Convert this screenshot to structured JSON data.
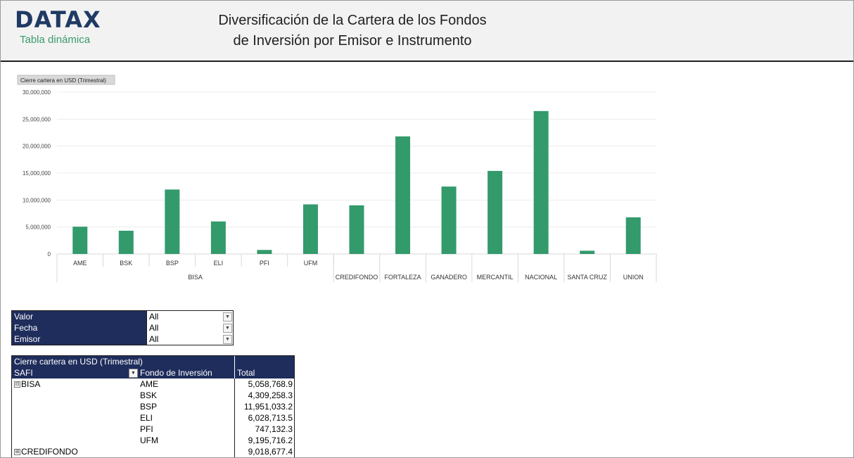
{
  "header": {
    "logo": "DATAX",
    "subtitle": "Tabla dinámica",
    "title_line1": "Diversificación de la Cartera de los Fondos",
    "title_line2": "de Inversión por Emisor e Instrumento"
  },
  "chart_data": {
    "type": "bar",
    "field_button": "Cierre cartera en USD (Trimestral)",
    "ylim": [
      0,
      30000000
    ],
    "yticks": [
      0,
      5000000,
      10000000,
      15000000,
      20000000,
      25000000,
      30000000
    ],
    "ytick_labels": [
      "0",
      "5,000,000",
      "10,000,000",
      "15,000,000",
      "20,000,000",
      "25,000,000",
      "30,000,000"
    ],
    "bar_color": "#339a6c",
    "groups": [
      {
        "label": "BISA",
        "items": [
          {
            "label": "AME",
            "value": 5058768.9
          },
          {
            "label": "BSK",
            "value": 4309258.3
          },
          {
            "label": "BSP",
            "value": 11951033.2
          },
          {
            "label": "ELI",
            "value": 6028713.5
          },
          {
            "label": "PFI",
            "value": 747132.3
          },
          {
            "label": "UFM",
            "value": 9195716.2
          }
        ]
      },
      {
        "label": "CREDIFONDO",
        "items": [
          {
            "label": "",
            "value": 9018677.4
          }
        ]
      },
      {
        "label": "FORTALEZA",
        "items": [
          {
            "label": "",
            "value": 21800000
          }
        ]
      },
      {
        "label": "GANADERO",
        "items": [
          {
            "label": "",
            "value": 12500000
          }
        ]
      },
      {
        "label": "MERCANTIL",
        "items": [
          {
            "label": "",
            "value": 15400000
          }
        ]
      },
      {
        "label": "NACIONAL",
        "items": [
          {
            "label": "",
            "value": 26500000
          }
        ]
      },
      {
        "label": "SANTA CRUZ",
        "items": [
          {
            "label": "",
            "value": 600000
          }
        ]
      },
      {
        "label": "UNION",
        "items": [
          {
            "label": "",
            "value": 6800000
          }
        ]
      }
    ]
  },
  "filters": [
    {
      "label": "Valor",
      "value": "All"
    },
    {
      "label": "Fecha",
      "value": "All"
    },
    {
      "label": "Emisor",
      "value": "All"
    }
  ],
  "pivot": {
    "measure": "Cierre cartera en USD (Trimestral)",
    "col_safi": "SAFI",
    "col_fondo": "Fondo de Inversión",
    "col_total": "Total",
    "rows": [
      {
        "safi": "BISA",
        "expand": "⊟",
        "fondo": "AME",
        "total": "5,058,768.9"
      },
      {
        "safi": "",
        "expand": "",
        "fondo": "BSK",
        "total": "4,309,258.3"
      },
      {
        "safi": "",
        "expand": "",
        "fondo": "BSP",
        "total": "11,951,033.2"
      },
      {
        "safi": "",
        "expand": "",
        "fondo": "ELI",
        "total": "6,028,713.5"
      },
      {
        "safi": "",
        "expand": "",
        "fondo": "PFI",
        "total": "747,132.3"
      },
      {
        "safi": "",
        "expand": "",
        "fondo": "UFM",
        "total": "9,195,716.2"
      },
      {
        "safi": "CREDIFONDO",
        "expand": "⊞",
        "fondo": "",
        "total": "9,018,677.4"
      }
    ]
  }
}
